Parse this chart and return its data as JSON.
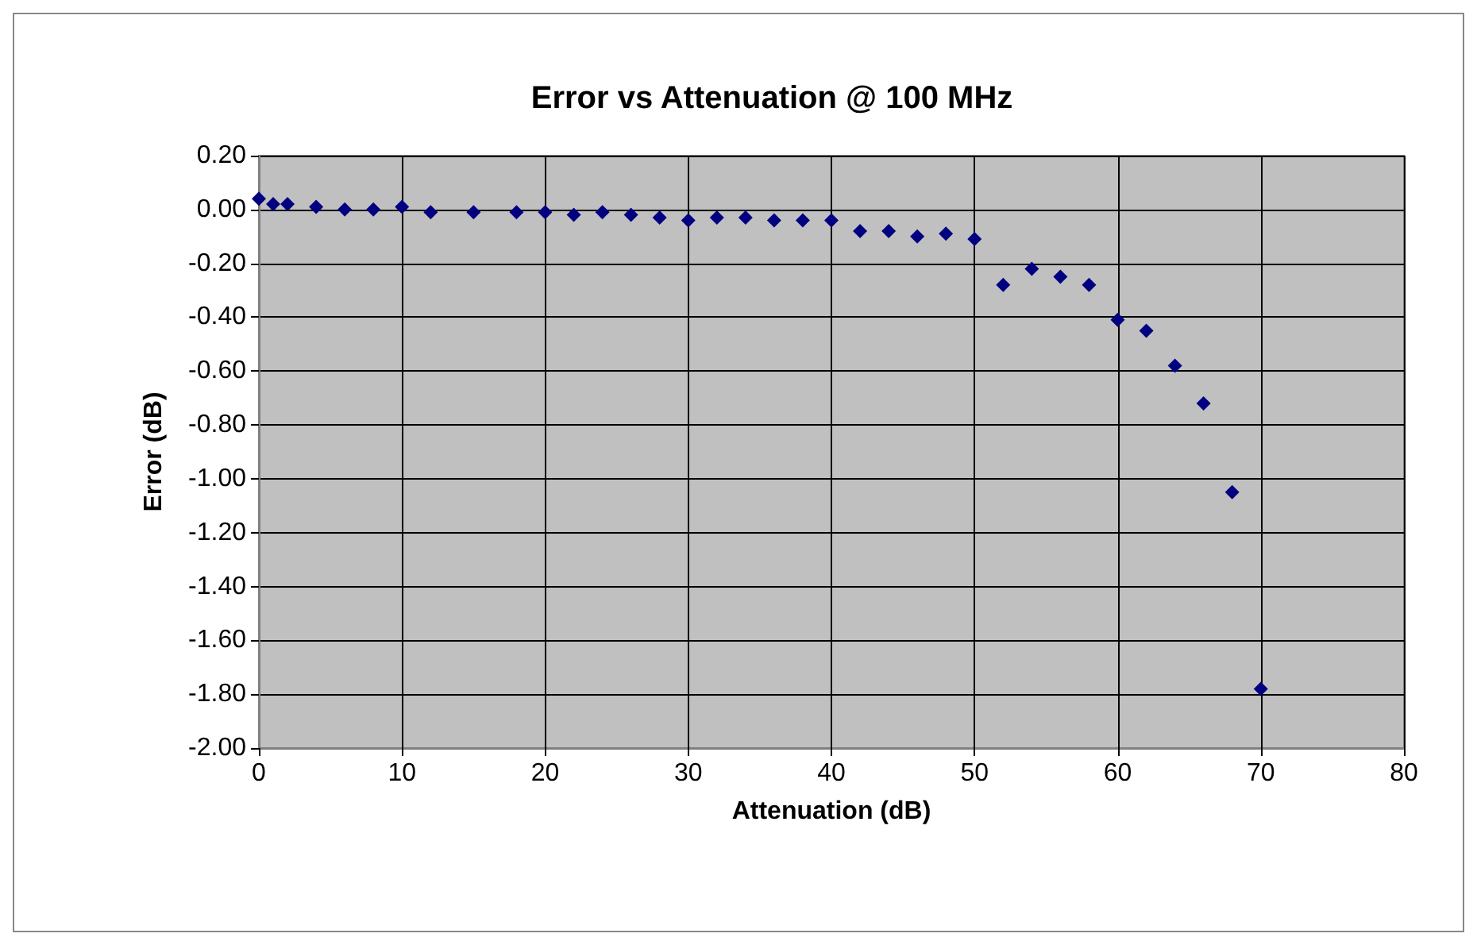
{
  "chart_data": {
    "type": "scatter",
    "title": "Error vs Attenuation @ 100 MHz",
    "xlabel": "Attenuation (dB)",
    "ylabel": "Error (dB)",
    "x": [
      0,
      1,
      2,
      4,
      6,
      8,
      10,
      12,
      15,
      18,
      20,
      22,
      24,
      26,
      28,
      30,
      32,
      34,
      36,
      38,
      40,
      42,
      44,
      46,
      48,
      50,
      52,
      54,
      56,
      58,
      60,
      62,
      64,
      66,
      68,
      70
    ],
    "series": [
      {
        "color": "#000080",
        "values": [
          0.04,
          0.02,
          0.02,
          0.01,
          0.0,
          0.0,
          0.01,
          -0.01,
          -0.01,
          -0.01,
          -0.01,
          -0.02,
          -0.01,
          -0.02,
          -0.03,
          -0.04,
          -0.03,
          -0.03,
          -0.04,
          -0.04,
          -0.04,
          -0.08,
          -0.08,
          -0.1,
          -0.09,
          -0.11,
          -0.28,
          -0.22,
          -0.25,
          -0.28,
          -0.41,
          -0.45,
          -0.58,
          -0.72,
          -1.05,
          -1.78
        ]
      }
    ],
    "xlim": [
      0,
      80
    ],
    "xticks": [
      0,
      10,
      20,
      30,
      40,
      50,
      60,
      70,
      80
    ],
    "ylim": [
      -2,
      0.2
    ],
    "yticks": [
      {
        "value": -2,
        "label": "-2.00"
      },
      {
        "value": -1.8,
        "label": "-1.80"
      },
      {
        "value": -1.6,
        "label": "-1.60"
      },
      {
        "value": -1.4,
        "label": "-1.40"
      },
      {
        "value": -1.2,
        "label": "-1.20"
      },
      {
        "value": -1,
        "label": "-1.00"
      },
      {
        "value": -0.8,
        "label": "-0.80"
      },
      {
        "value": -0.6,
        "label": "-0.60"
      },
      {
        "value": -0.4,
        "label": "-0.40"
      },
      {
        "value": -0.2,
        "label": "-0.20"
      },
      {
        "value": 0,
        "label": "0.00"
      },
      {
        "value": 0.2,
        "label": "0.20"
      }
    ],
    "grid": true,
    "marker": "diamond"
  }
}
